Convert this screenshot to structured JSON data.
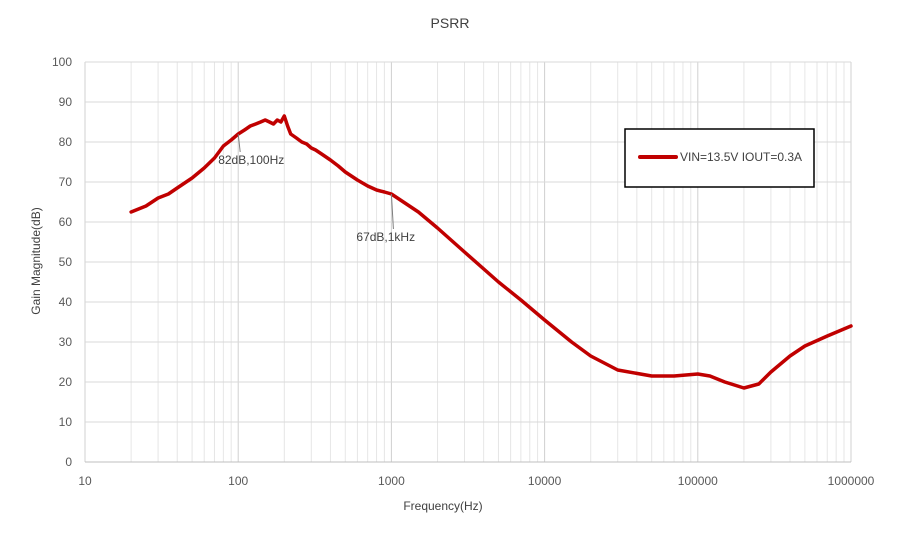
{
  "chart_data": {
    "type": "line",
    "title": "PSRR",
    "xlabel": "Frequency(Hz)",
    "ylabel": "Gain Magnitude(dB)",
    "x_scale": "log",
    "xlim": [
      10,
      1000000
    ],
    "ylim": [
      0,
      100
    ],
    "x_ticks": [
      "10",
      "100",
      "1000",
      "10000",
      "100000",
      "1000000"
    ],
    "y_ticks": [
      "0",
      "10",
      "20",
      "30",
      "40",
      "50",
      "60",
      "70",
      "80",
      "90",
      "100"
    ],
    "grid": true,
    "legend_position": "top-right",
    "series": [
      {
        "name": "VIN=13.5V IOUT=0.3A",
        "color": "#C00000",
        "x": [
          20,
          25,
          30,
          35,
          40,
          50,
          60,
          70,
          80,
          90,
          100,
          110,
          120,
          130,
          140,
          150,
          160,
          170,
          180,
          190,
          200,
          210,
          220,
          240,
          260,
          280,
          300,
          320,
          350,
          400,
          450,
          500,
          600,
          700,
          800,
          900,
          1000,
          1500,
          2000,
          3000,
          5000,
          7000,
          10000,
          15000,
          20000,
          30000,
          50000,
          70000,
          100000,
          120000,
          150000,
          200000,
          250000,
          300000,
          400000,
          500000,
          700000,
          1000000
        ],
        "y": [
          62.5,
          64,
          66,
          67,
          68.5,
          71,
          73.5,
          76,
          79,
          80.5,
          82,
          83,
          84,
          84.5,
          85,
          85.5,
          85,
          84.5,
          85.5,
          85,
          86.5,
          84,
          82,
          81,
          80,
          79.5,
          78.5,
          78,
          77,
          75.5,
          74,
          72.5,
          70.5,
          69,
          68,
          67.5,
          67,
          62.5,
          58.5,
          52.5,
          45,
          40.5,
          35.5,
          30,
          26.5,
          23,
          21.5,
          21.5,
          22,
          21.5,
          20,
          18.5,
          19.5,
          22.5,
          26.5,
          29,
          31.5,
          34
        ]
      }
    ],
    "annotations": [
      {
        "text": "82dB,100Hz",
        "x": 100,
        "y": 82
      },
      {
        "text": "67dB,1kHz",
        "x": 1000,
        "y": 67
      }
    ]
  }
}
